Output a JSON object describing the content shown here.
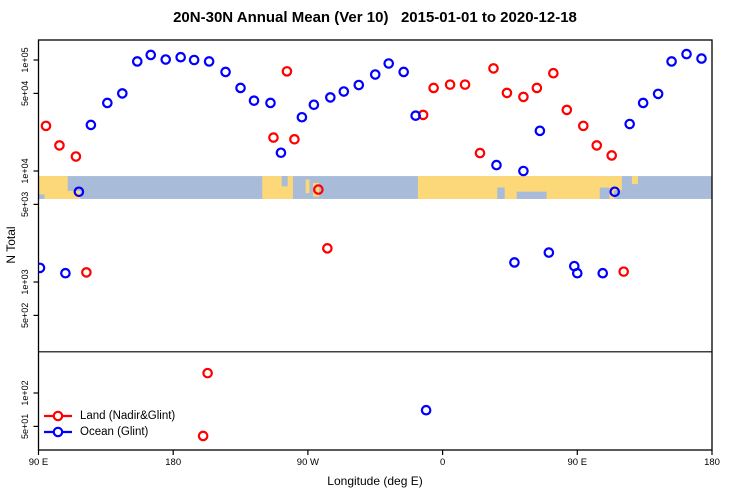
{
  "title": "20N-30N Annual Mean (Ver 10)   2015-01-01 to 2020-12-18",
  "legend": {
    "entries": [
      {
        "label": "Land (Nadir&Glint)",
        "color": "#ff0000"
      },
      {
        "label": "Ocean (Glint)",
        "color": "#0000ff"
      }
    ]
  },
  "chart_data": {
    "type": "scatter",
    "title": "20N-30N Annual Mean (Ver 10)   2015-01-01 to 2020-12-18",
    "xlabel": "Longitude (deg E)",
    "ylabel": "N Total",
    "grid": false,
    "legend_position": "bottom-left",
    "x_axis": {
      "lim": [
        90,
        540
      ],
      "tick_values": [
        90,
        180,
        270,
        360,
        450,
        540
      ],
      "tick_labels": [
        "90 E",
        "180",
        "90 W",
        "0",
        "90 E",
        "180"
      ],
      "note": "longitude axis continues eastward past the dateline and wraps 1.25 times around the globe"
    },
    "y_axis": {
      "scale": "log10",
      "lim": [
        30,
        150000
      ],
      "tick_values": [
        50,
        100,
        500,
        1000,
        5000,
        10000,
        50000,
        100000
      ],
      "tick_labels": [
        "5e+01",
        "1e+02",
        "5e+02",
        "1e+03",
        "5e+03",
        "1e+04",
        "5e+04",
        "1e+05"
      ]
    },
    "threshold_line_value": 235,
    "series": [
      {
        "name": "Land (Nadir&Glint)",
        "color": "#ff0000",
        "marker": "open-circle",
        "points": [
          [
            95,
            25500
          ],
          [
            104,
            17000
          ],
          [
            115,
            13500
          ],
          [
            247,
            20000
          ],
          [
            256,
            79000
          ],
          [
            261,
            19300
          ],
          [
            347,
            32000
          ],
          [
            354,
            56000
          ],
          [
            365,
            60000
          ],
          [
            375,
            60000
          ],
          [
            385,
            14500
          ],
          [
            394,
            84000
          ],
          [
            403,
            50500
          ],
          [
            414,
            46500
          ],
          [
            423,
            56000
          ],
          [
            434,
            76000
          ],
          [
            443,
            35500
          ],
          [
            454,
            25500
          ],
          [
            463,
            17000
          ],
          [
            473,
            13800
          ],
          [
            277,
            6800
          ],
          [
            122,
            1220
          ],
          [
            283,
            2010
          ],
          [
            481,
            1240
          ],
          [
            203,
            151
          ],
          [
            200,
            41
          ]
        ]
      },
      {
        "name": "Ocean (Glint)",
        "color": "#0000ff",
        "marker": "open-circle",
        "points": [
          [
            125,
            26000
          ],
          [
            136,
            41000
          ],
          [
            146,
            50000
          ],
          [
            156,
            97000
          ],
          [
            165,
            111000
          ],
          [
            175,
            101000
          ],
          [
            185,
            106000
          ],
          [
            194,
            100000
          ],
          [
            204,
            97000
          ],
          [
            215,
            78000
          ],
          [
            225,
            56000
          ],
          [
            234,
            43000
          ],
          [
            245,
            41000
          ],
          [
            252,
            14600
          ],
          [
            266,
            30500
          ],
          [
            274,
            39500
          ],
          [
            285,
            46000
          ],
          [
            294,
            52000
          ],
          [
            304,
            59500
          ],
          [
            315,
            74000
          ],
          [
            324,
            93000
          ],
          [
            334,
            78000
          ],
          [
            342,
            31500
          ],
          [
            425,
            23000
          ],
          [
            485,
            26500
          ],
          [
            494,
            41000
          ],
          [
            504,
            49500
          ],
          [
            513,
            97000
          ],
          [
            523,
            113000
          ],
          [
            533,
            103000
          ],
          [
            117,
            6500
          ],
          [
            475,
            6500
          ],
          [
            396,
            11300
          ],
          [
            414,
            10000
          ],
          [
            91,
            1340
          ],
          [
            108,
            1200
          ],
          [
            408,
            1500
          ],
          [
            431,
            1840
          ],
          [
            448,
            1390
          ],
          [
            450,
            1200
          ],
          [
            467,
            1200
          ],
          [
            349,
            70
          ]
        ]
      }
    ],
    "map_band": {
      "description": "world coastline strip drawn across the plot between N=5600 and N=9000",
      "value_top": 9000,
      "value_bottom": 5600,
      "ocean_color": "#a8bcd9",
      "land_color": "#fdd878",
      "land_segments": [
        {
          "lon": [
            90,
            109.5
          ],
          "frac": [
            0,
            1
          ]
        },
        {
          "lon": [
            104,
            118
          ],
          "frac": [
            0.65,
            1
          ]
        },
        {
          "lon": [
            239.5,
            260
          ],
          "frac": [
            0,
            1
          ]
        },
        {
          "lon": [
            268.5,
            271
          ],
          "frac": [
            0.15,
            0.75
          ]
        },
        {
          "lon": [
            273.5,
            277.5
          ],
          "frac": [
            0.3,
            0.9
          ]
        },
        {
          "lon": [
            343.5,
            479.8
          ],
          "frac": [
            0,
            1
          ]
        },
        {
          "lon": [
            486.5,
            490.5
          ],
          "frac": [
            0,
            0.35
          ]
        }
      ],
      "ocean_notches": [
        {
          "lon": [
            90,
            94
          ],
          "frac": [
            0.8,
            1
          ]
        },
        {
          "lon": [
            252.5,
            256.5
          ],
          "frac": [
            0,
            0.45
          ]
        },
        {
          "lon": [
            396.5,
            401.5
          ],
          "frac": [
            0.5,
            1
          ]
        },
        {
          "lon": [
            409.5,
            429.5
          ],
          "frac": [
            0.68,
            1
          ]
        },
        {
          "lon": [
            465,
            471.5
          ],
          "frac": [
            0.5,
            1
          ]
        },
        {
          "lon": [
            474.5,
            480
          ],
          "frac": [
            0.62,
            1
          ]
        }
      ]
    }
  }
}
